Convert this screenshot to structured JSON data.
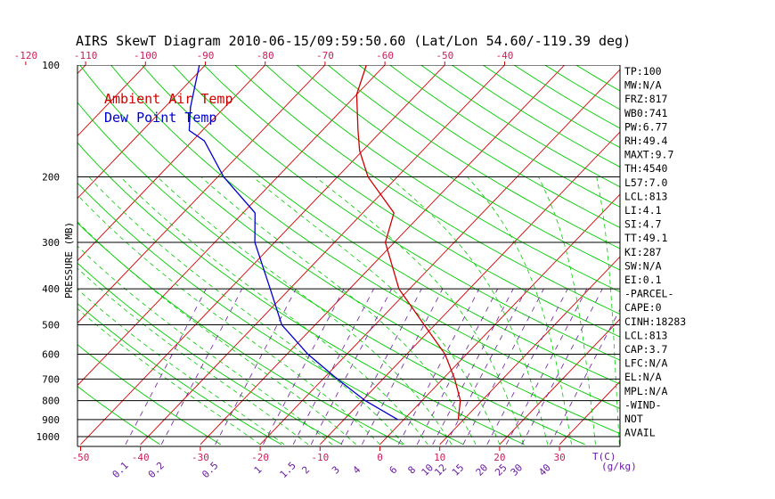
{
  "chart_data": {
    "type": "line",
    "title": "AIRS SkewT Diagram 2010-06-15/09:59:50.60 (Lat/Lon 54.60/-119.39 deg)",
    "ylabel": "PRESSURE (MB)",
    "xlabel": "T(C)",
    "mixing_ratio_unit": "(g/kg)",
    "pressure_scale": "log",
    "ylim": [
      1050,
      100
    ],
    "pressure_ticks": [
      100,
      200,
      300,
      400,
      500,
      600,
      700,
      800,
      900,
      1000
    ],
    "bottom_temp_ticks": [
      -50,
      -40,
      -30,
      -20,
      -10,
      0,
      10,
      20,
      30
    ],
    "top_temp_ticks": [
      -120,
      -110,
      -100,
      -90,
      -80,
      -70,
      -60,
      -50,
      -40
    ],
    "mixing_ratio_ticks": [
      "0.1",
      "0.2",
      "0.5",
      "1",
      "1.5",
      "2",
      "3",
      "4",
      "6",
      "8",
      "10",
      "12",
      "15",
      "20",
      "25",
      "30",
      "40"
    ],
    "mixing_ratio_temps_at_1000": [
      -43,
      -37,
      -28,
      -20,
      -15,
      -12,
      -7,
      -3.5,
      2.6,
      5.7,
      8.3,
      10.5,
      13.4,
      17.4,
      20.6,
      23.2,
      27.9
    ],
    "series": [
      {
        "name": "Ambient Air Temp",
        "color": "#cc0000",
        "points": [
          [
            900,
            9.1
          ],
          [
            870,
            8.3
          ],
          [
            800,
            6.4
          ],
          [
            700,
            2.0
          ],
          [
            600,
            -3.6
          ],
          [
            500,
            -11.8
          ],
          [
            400,
            -21.8
          ],
          [
            300,
            -31.5
          ],
          [
            250,
            -34.8
          ],
          [
            200,
            -44.9
          ],
          [
            170,
            -50.5
          ],
          [
            150,
            -54.0
          ],
          [
            120,
            -60.0
          ],
          [
            100,
            -63.1
          ]
        ]
      },
      {
        "name": "Dew Point Temp",
        "color": "#0000cc",
        "points": [
          [
            900,
            -1.0
          ],
          [
            800,
            -9.5
          ],
          [
            700,
            -17.6
          ],
          [
            600,
            -26.5
          ],
          [
            500,
            -35.6
          ],
          [
            400,
            -43.3
          ],
          [
            300,
            -53.3
          ],
          [
            250,
            -58.0
          ],
          [
            200,
            -69.0
          ],
          [
            160,
            -78.0
          ],
          [
            150,
            -82.2
          ],
          [
            130,
            -85.7
          ],
          [
            100,
            -91.0
          ]
        ]
      }
    ],
    "grid": true,
    "legend": "top-left"
  },
  "indices": [
    "TP:100",
    "MW:N/A",
    "FRZ:817",
    "WB0:741",
    "PW:6.77",
    "RH:49.4",
    "MAXT:9.7",
    "TH:4540",
    "L57:7.0",
    "LCL:813",
    "LI:4.1",
    "SI:4.7",
    "TT:49.1",
    "KI:287",
    "SW:N/A",
    "EI:0.1",
    "-PARCEL-",
    "CAPE:0",
    "CINH:18283",
    "LCL:813",
    "CAP:3.7",
    "LFC:N/A",
    "EL:N/A",
    "MPL:N/A",
    "-WIND-",
    "NOT",
    "AVAIL"
  ],
  "colors": {
    "temperature": "#cc0000",
    "dewpoint": "#0000cc",
    "isotherm": "#d40000",
    "dry_adiabat": "#00cc00",
    "moist_adiabat": "#00cc00",
    "mixing_ratio": "#6a1aa0",
    "grid": "#000000",
    "bottom_tick_text": "#c81e5a",
    "top_tick_text": "#c81e5a",
    "mixing_text": "#6a1aa0"
  }
}
